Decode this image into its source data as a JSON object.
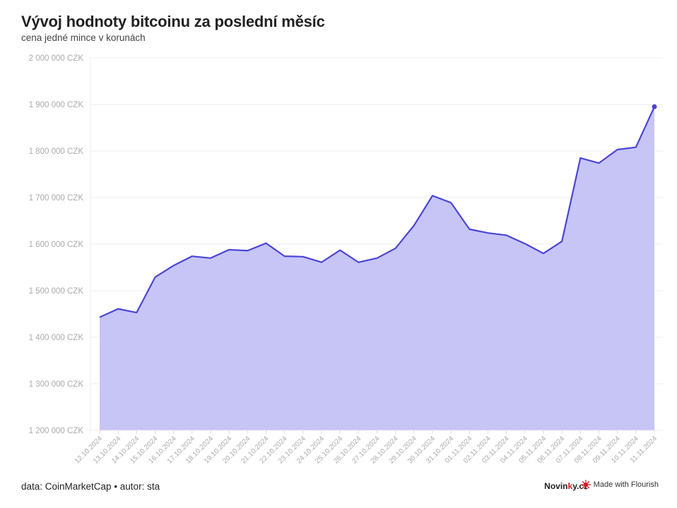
{
  "title": "Vývoj hodnoty bitcoinu za poslední měsíc",
  "subtitle": "cena jedné mince v korunách",
  "footer": {
    "source": "data: CoinMarketCap • autor: sta",
    "brand_part1": "Novin",
    "brand_highlight": "k",
    "brand_part2": "y.cz",
    "flourish": "Made with Flourish"
  },
  "colors": {
    "line": "#4b45d6",
    "area": "#c7c5f6",
    "grid": "#ececec",
    "tick_text": "#aaaaaa",
    "brand_red": "#d7141a"
  },
  "chart_data": {
    "type": "area",
    "title": "Vývoj hodnoty bitcoinu za poslední měsíc",
    "subtitle": "cena jedné mince v korunách",
    "xlabel": "",
    "ylabel": "",
    "ylim": [
      1200000,
      2000000
    ],
    "y_ticks": [
      1200000,
      1300000,
      1400000,
      1500000,
      1600000,
      1700000,
      1800000,
      1900000,
      2000000
    ],
    "y_tick_labels": [
      "1 200 000 CZK",
      "1 300 000 CZK",
      "1 400 000 CZK",
      "1 500 000 CZK",
      "1 600 000 CZK",
      "1 700 000 CZK",
      "1 800 000 CZK",
      "1 900 000 CZK",
      "2 000 000 CZK"
    ],
    "grid": true,
    "categories": [
      "12.10.2024",
      "13.10.2024",
      "14.10.2024",
      "15.10.2024",
      "16.10.2024",
      "17.10.2024",
      "18.10.2024",
      "19.10.2024",
      "20.10.2024",
      "21.10.2024",
      "22.10.2024",
      "23.10.2024",
      "24.10.2024",
      "25.10.2024",
      "26.10.2024",
      "27.10.2024",
      "28.10.2024",
      "29.10.2024",
      "30.10.2024",
      "31.10.2024",
      "01.11.2024",
      "02.11.2024",
      "03.11.2024",
      "04.11.2024",
      "05.11.2024",
      "06.11.2024",
      "07.11.2024",
      "08.11.2024",
      "09.11.2024",
      "10.11.2024",
      "11.11.2024"
    ],
    "values": [
      1443000,
      1461000,
      1453000,
      1529000,
      1554000,
      1574000,
      1570000,
      1588000,
      1586000,
      1602000,
      1574000,
      1573000,
      1561000,
      1587000,
      1561000,
      1570000,
      1591000,
      1640000,
      1704000,
      1689000,
      1632000,
      1624000,
      1619000,
      1601000,
      1580000,
      1606000,
      1785000,
      1774000,
      1803000,
      1808000,
      1895000
    ]
  }
}
